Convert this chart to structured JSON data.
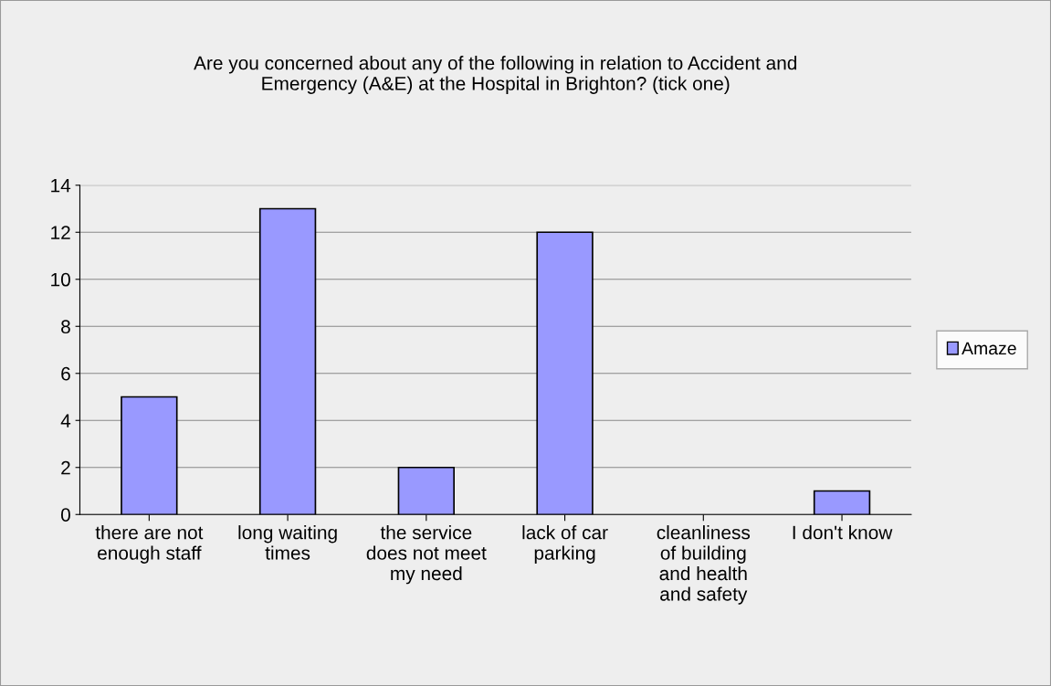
{
  "chart_data": {
    "type": "bar",
    "title": "Are you concerned about any of the following in relation to Accident and\nEmergency (A&E) at the Hospital in Brighton? (tick one)",
    "categories": [
      "there are not enough staff",
      "long waiting times",
      "the service does not meet my need",
      "lack of car parking",
      "cleanliness of building and health and safety",
      "I don't know"
    ],
    "series": [
      {
        "name": "Amaze",
        "color": "#9999ff",
        "values": [
          5,
          13,
          2,
          12,
          0,
          1
        ]
      }
    ],
    "ylim": [
      0,
      14
    ],
    "yticks": [
      0,
      2,
      4,
      6,
      8,
      10,
      12,
      14
    ],
    "grid": "y",
    "legend": "right"
  }
}
